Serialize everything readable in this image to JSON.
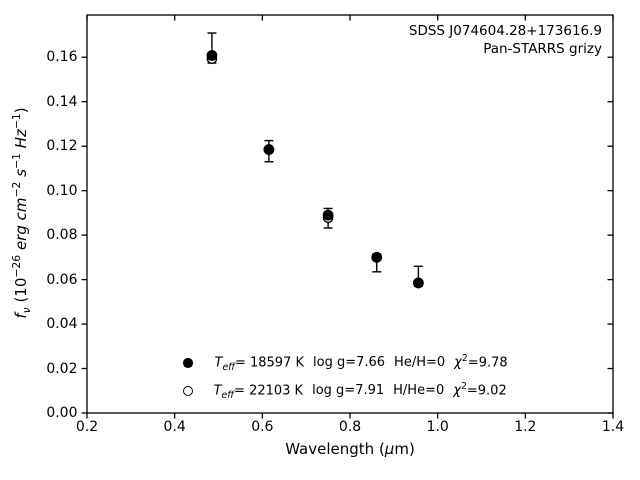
{
  "annotation": {
    "line1": "SDSS J074604.28+173616.9",
    "line2": "Pan-STARRS grizy"
  },
  "x_axis_label": {
    "pre": "Wavelength (",
    "mu": "μ",
    "post": "m)"
  },
  "y_axis_label": {
    "f": "f",
    "nu": "ν",
    "open_paren": " (10",
    "exp26": "−26",
    "erg": " erg cm",
    "exp2": "−2",
    "s": " s",
    "exp1a": "−1",
    "hz": " Hz",
    "exp1b": "−1",
    "close_paren": ")"
  },
  "legend": {
    "rows": [
      {
        "marker": "filled-circle",
        "t": "T",
        "t_sub": "eff",
        "t_eq": "= 18597 K",
        "logg": "log g=7.66",
        "ratio": "He/H=0",
        "chi": "χ",
        "chi_sup": "2",
        "chi_eq": "=9.78"
      },
      {
        "marker": "open-circle",
        "t": "T",
        "t_sub": "eff",
        "t_eq": "= 22103 K",
        "logg": "log g=7.91",
        "ratio": "H/He=0",
        "chi": "χ",
        "chi_sup": "2",
        "chi_eq": "=9.02"
      }
    ]
  },
  "chart_data": {
    "type": "scatter",
    "title": "",
    "xlabel": "Wavelength (μm)",
    "ylabel": "f_ν (10⁻²⁶ erg cm⁻² s⁻¹ Hz⁻¹)",
    "xlim": [
      0.2,
      1.4
    ],
    "ylim": [
      0,
      0.179
    ],
    "grid": false,
    "x_tick_values": [
      0.2,
      0.4,
      0.6,
      0.8,
      1.0,
      1.2,
      1.4
    ],
    "x_tick_labels": [
      "0.2",
      "0.4",
      "0.6",
      "0.8",
      "1.0",
      "1.2",
      "1.4"
    ],
    "y_tick_values": [
      0.0,
      0.02,
      0.04,
      0.06,
      0.08,
      0.1,
      0.12,
      0.14,
      0.16
    ],
    "y_tick_labels": [
      "0.00",
      "0.02",
      "0.04",
      "0.06",
      "0.08",
      "0.10",
      "0.12",
      "0.14",
      "0.16"
    ],
    "bands": [
      "g",
      "r",
      "i",
      "z",
      "y"
    ],
    "series": [
      {
        "name": "T_eff= 18597 K  log g=7.66  He/H=0  χ²=9.78",
        "marker": "filled-circle",
        "color": "#000000",
        "x": [
          0.485,
          0.615,
          0.75,
          0.861,
          0.956
        ],
        "y": [
          0.1608,
          0.1185,
          0.089,
          0.07,
          0.0585
        ]
      },
      {
        "name": "T_eff= 22103 K  log g=7.91  H/He=0  χ²=9.02",
        "marker": "open-circle",
        "color": "#000000",
        "x": [
          0.485,
          0.615,
          0.75,
          0.861,
          0.956
        ],
        "y": [
          0.1593,
          0.1185,
          0.0878,
          0.07,
          0.0585
        ]
      }
    ],
    "error_bars": {
      "x": [
        0.485,
        0.615,
        0.75,
        0.861,
        0.956
      ],
      "lo": [
        0.1574,
        0.113,
        0.0832,
        0.0635,
        0.057
      ],
      "hi": [
        0.1709,
        0.1225,
        0.092,
        0.0715,
        0.066
      ]
    },
    "legend_position": "lower left inside",
    "colors": {
      "foreground": "#000000",
      "background": "#ffffff"
    }
  }
}
